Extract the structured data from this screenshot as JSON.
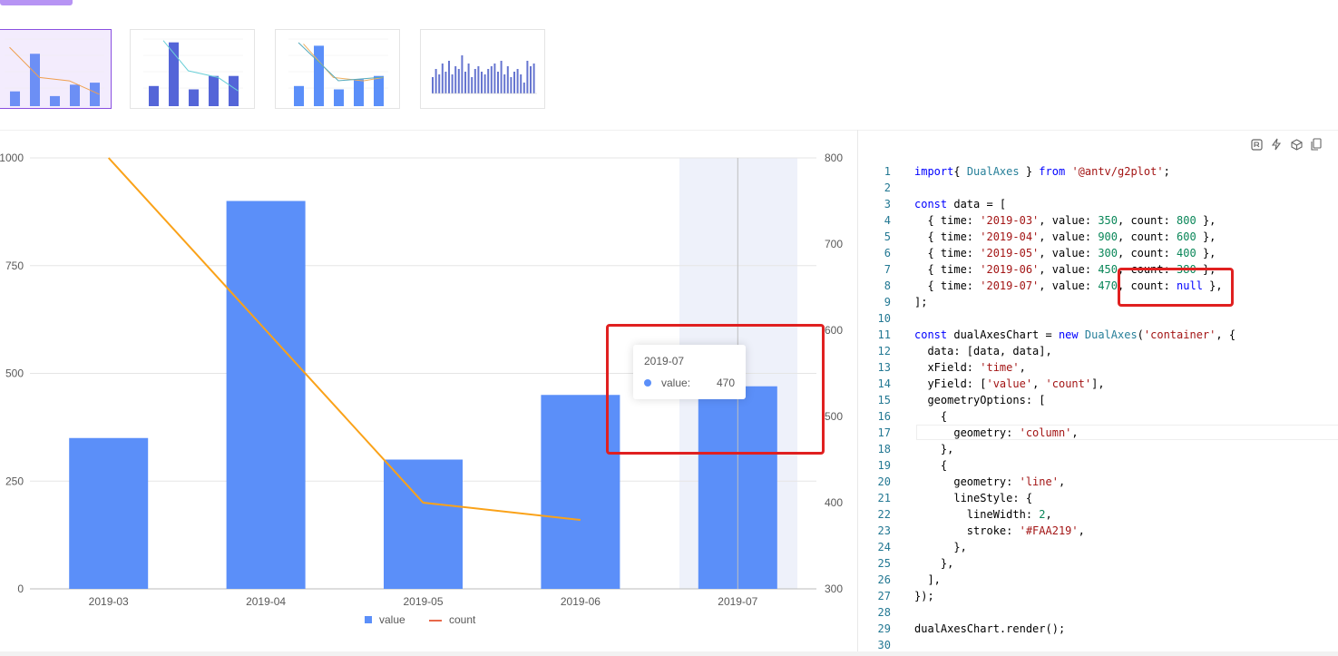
{
  "thumbnails": [
    {
      "name": "thumb-1",
      "active": true
    },
    {
      "name": "thumb-2",
      "active": false
    },
    {
      "name": "thumb-3",
      "active": false
    },
    {
      "name": "thumb-4",
      "active": false
    }
  ],
  "chart_data": {
    "type": "bar",
    "categories": [
      "2019-03",
      "2019-04",
      "2019-05",
      "2019-06",
      "2019-07"
    ],
    "series": [
      {
        "name": "value",
        "type": "column",
        "values": [
          350,
          900,
          300,
          450,
          470
        ],
        "axis": "left",
        "color": "#5B8FF9"
      },
      {
        "name": "count",
        "type": "line",
        "values": [
          800,
          600,
          400,
          380,
          null
        ],
        "axis": "right",
        "color": "#FAA219"
      }
    ],
    "y_left": {
      "ticks": [
        0,
        250,
        500,
        750,
        1000
      ],
      "ylim": [
        0,
        1000
      ]
    },
    "y_right": {
      "ticks": [
        300,
        400,
        500,
        600,
        700,
        800
      ],
      "ylim": [
        300,
        800
      ]
    },
    "grid": true,
    "legend": "bottom",
    "highlight_category": "2019-07"
  },
  "tooltip": {
    "title": "2019-07",
    "name": "value:",
    "value": "470"
  },
  "legend": [
    {
      "label": "value",
      "color": "#5B8FF9"
    },
    {
      "label": "count",
      "color": "#E8684A"
    }
  ],
  "toolbar": [
    "refresh-icon",
    "flash-icon",
    "box-icon",
    "copy-icon"
  ],
  "code": [
    [
      [
        "kw",
        "import"
      ],
      [
        "",
        "{ "
      ],
      [
        "fn",
        "DualAxes"
      ],
      [
        "",
        " } "
      ],
      [
        "kw",
        "from"
      ],
      [
        "",
        " "
      ],
      [
        "str",
        "'@antv/g2plot'"
      ],
      [
        "",
        ";"
      ]
    ],
    [],
    [
      [
        "kw",
        "const"
      ],
      [
        "",
        " data = ["
      ]
    ],
    [
      [
        "",
        "  { time: "
      ],
      [
        "str",
        "'2019-03'"
      ],
      [
        "",
        ", value: "
      ],
      [
        "num",
        "350"
      ],
      [
        "",
        ", count: "
      ],
      [
        "num",
        "800"
      ],
      [
        "",
        " },"
      ]
    ],
    [
      [
        "",
        "  { time: "
      ],
      [
        "str",
        "'2019-04'"
      ],
      [
        "",
        ", value: "
      ],
      [
        "num",
        "900"
      ],
      [
        "",
        ", count: "
      ],
      [
        "num",
        "600"
      ],
      [
        "",
        " },"
      ]
    ],
    [
      [
        "",
        "  { time: "
      ],
      [
        "str",
        "'2019-05'"
      ],
      [
        "",
        ", value: "
      ],
      [
        "num",
        "300"
      ],
      [
        "",
        ", count: "
      ],
      [
        "num",
        "400"
      ],
      [
        "",
        " },"
      ]
    ],
    [
      [
        "",
        "  { time: "
      ],
      [
        "str",
        "'2019-06'"
      ],
      [
        "",
        ", value: "
      ],
      [
        "num",
        "450"
      ],
      [
        "",
        ", count: "
      ],
      [
        "num",
        "380"
      ],
      [
        "",
        " },"
      ]
    ],
    [
      [
        "",
        "  { time: "
      ],
      [
        "str",
        "'2019-07'"
      ],
      [
        "",
        ", value: "
      ],
      [
        "num",
        "470"
      ],
      [
        "",
        ", count: "
      ],
      [
        "kw",
        "null"
      ],
      [
        "",
        " },"
      ]
    ],
    [
      [
        "",
        "];"
      ]
    ],
    [],
    [
      [
        "kw",
        "const"
      ],
      [
        "",
        " dualAxesChart = "
      ],
      [
        "kw",
        "new"
      ],
      [
        "",
        " "
      ],
      [
        "fn",
        "DualAxes"
      ],
      [
        "",
        "("
      ],
      [
        "str",
        "'container'"
      ],
      [
        "",
        ", {"
      ]
    ],
    [
      [
        "",
        "  data: [data, data],"
      ]
    ],
    [
      [
        "",
        "  xField: "
      ],
      [
        "str",
        "'time'"
      ],
      [
        "",
        ","
      ]
    ],
    [
      [
        "",
        "  yField: ["
      ],
      [
        "str",
        "'value'"
      ],
      [
        "",
        ", "
      ],
      [
        "str",
        "'count'"
      ],
      [
        "",
        "],"
      ]
    ],
    [
      [
        "",
        "  geometryOptions: ["
      ]
    ],
    [
      [
        "",
        "    {"
      ]
    ],
    [
      [
        "",
        "      geometry: "
      ],
      [
        "str",
        "'column'"
      ],
      [
        "",
        ","
      ]
    ],
    [
      [
        "",
        "    },"
      ]
    ],
    [
      [
        "",
        "    {"
      ]
    ],
    [
      [
        "",
        "      geometry: "
      ],
      [
        "str",
        "'line'"
      ],
      [
        "",
        ","
      ]
    ],
    [
      [
        "",
        "      lineStyle: {"
      ]
    ],
    [
      [
        "",
        "        lineWidth: "
      ],
      [
        "num",
        "2"
      ],
      [
        "",
        ","
      ]
    ],
    [
      [
        "",
        "        stroke: "
      ],
      [
        "str",
        "'#FAA219'"
      ],
      [
        "",
        ","
      ]
    ],
    [
      [
        "",
        "      },"
      ]
    ],
    [
      [
        "",
        "    },"
      ]
    ],
    [
      [
        "",
        "  ],"
      ]
    ],
    [
      [
        "",
        "});"
      ]
    ],
    [],
    [
      [
        "",
        "dualAxesChart.render();"
      ]
    ],
    []
  ]
}
